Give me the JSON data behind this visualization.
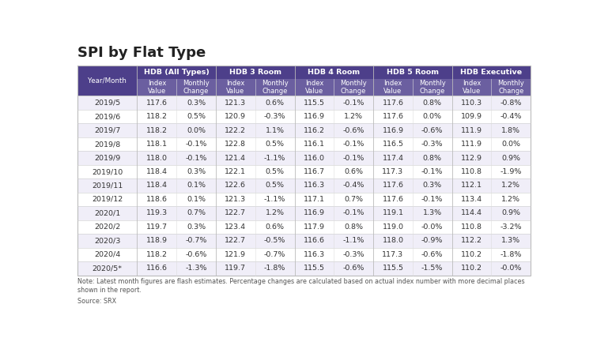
{
  "title": "SPI by Flat Type",
  "note": "Note: Latest month figures are flash estimates. Percentage changes are calculated based on actual index number with more decimal places\nshown in the report.",
  "source": "Source: SRX",
  "col_groups": [
    {
      "label": "HDB (All Types)"
    },
    {
      "label": "HDB 3 Room"
    },
    {
      "label": "HDB 4 Room"
    },
    {
      "label": "HDB 5 Room"
    },
    {
      "label": "HDB Executive"
    }
  ],
  "rows": [
    [
      "2019/5",
      "117.6",
      "0.3%",
      "121.3",
      "0.6%",
      "115.5",
      "-0.1%",
      "117.6",
      "0.8%",
      "110.3",
      "-0.8%"
    ],
    [
      "2019/6",
      "118.2",
      "0.5%",
      "120.9",
      "-0.3%",
      "116.9",
      "1.2%",
      "117.6",
      "0.0%",
      "109.9",
      "-0.4%"
    ],
    [
      "2019/7",
      "118.2",
      "0.0%",
      "122.2",
      "1.1%",
      "116.2",
      "-0.6%",
      "116.9",
      "-0.6%",
      "111.9",
      "1.8%"
    ],
    [
      "2019/8",
      "118.1",
      "-0.1%",
      "122.8",
      "0.5%",
      "116.1",
      "-0.1%",
      "116.5",
      "-0.3%",
      "111.9",
      "0.0%"
    ],
    [
      "2019/9",
      "118.0",
      "-0.1%",
      "121.4",
      "-1.1%",
      "116.0",
      "-0.1%",
      "117.4",
      "0.8%",
      "112.9",
      "0.9%"
    ],
    [
      "2019/10",
      "118.4",
      "0.3%",
      "122.1",
      "0.5%",
      "116.7",
      "0.6%",
      "117.3",
      "-0.1%",
      "110.8",
      "-1.9%"
    ],
    [
      "2019/11",
      "118.4",
      "0.1%",
      "122.6",
      "0.5%",
      "116.3",
      "-0.4%",
      "117.6",
      "0.3%",
      "112.1",
      "1.2%"
    ],
    [
      "2019/12",
      "118.6",
      "0.1%",
      "121.3",
      "-1.1%",
      "117.1",
      "0.7%",
      "117.6",
      "-0.1%",
      "113.4",
      "1.2%"
    ],
    [
      "2020/1",
      "119.3",
      "0.7%",
      "122.7",
      "1.2%",
      "116.9",
      "-0.1%",
      "119.1",
      "1.3%",
      "114.4",
      "0.9%"
    ],
    [
      "2020/2",
      "119.7",
      "0.3%",
      "123.4",
      "0.6%",
      "117.9",
      "0.8%",
      "119.0",
      "-0.0%",
      "110.8",
      "-3.2%"
    ],
    [
      "2020/3",
      "118.9",
      "-0.7%",
      "122.7",
      "-0.5%",
      "116.6",
      "-1.1%",
      "118.0",
      "-0.9%",
      "112.2",
      "1.3%"
    ],
    [
      "2020/4",
      "118.2",
      "-0.6%",
      "121.9",
      "-0.7%",
      "116.3",
      "-0.3%",
      "117.3",
      "-0.6%",
      "110.2",
      "-1.8%"
    ],
    [
      "2020/5*",
      "116.6",
      "-1.3%",
      "119.7",
      "-1.8%",
      "115.5",
      "-0.6%",
      "115.5",
      "-1.5%",
      "110.2",
      "-0.0%"
    ]
  ],
  "header_bg": "#4d3f8a",
  "subheader_bg": "#6b5fa0",
  "row_bg_even": "#ffffff",
  "row_bg_odd": "#f0eef8",
  "header_text_color": "#ffffff",
  "body_text_color": "#333333",
  "title_color": "#222222",
  "title_fontsize": 13,
  "header_fontsize": 6.8,
  "subheader_fontsize": 6.0,
  "body_fontsize": 6.8,
  "note_fontsize": 5.8
}
